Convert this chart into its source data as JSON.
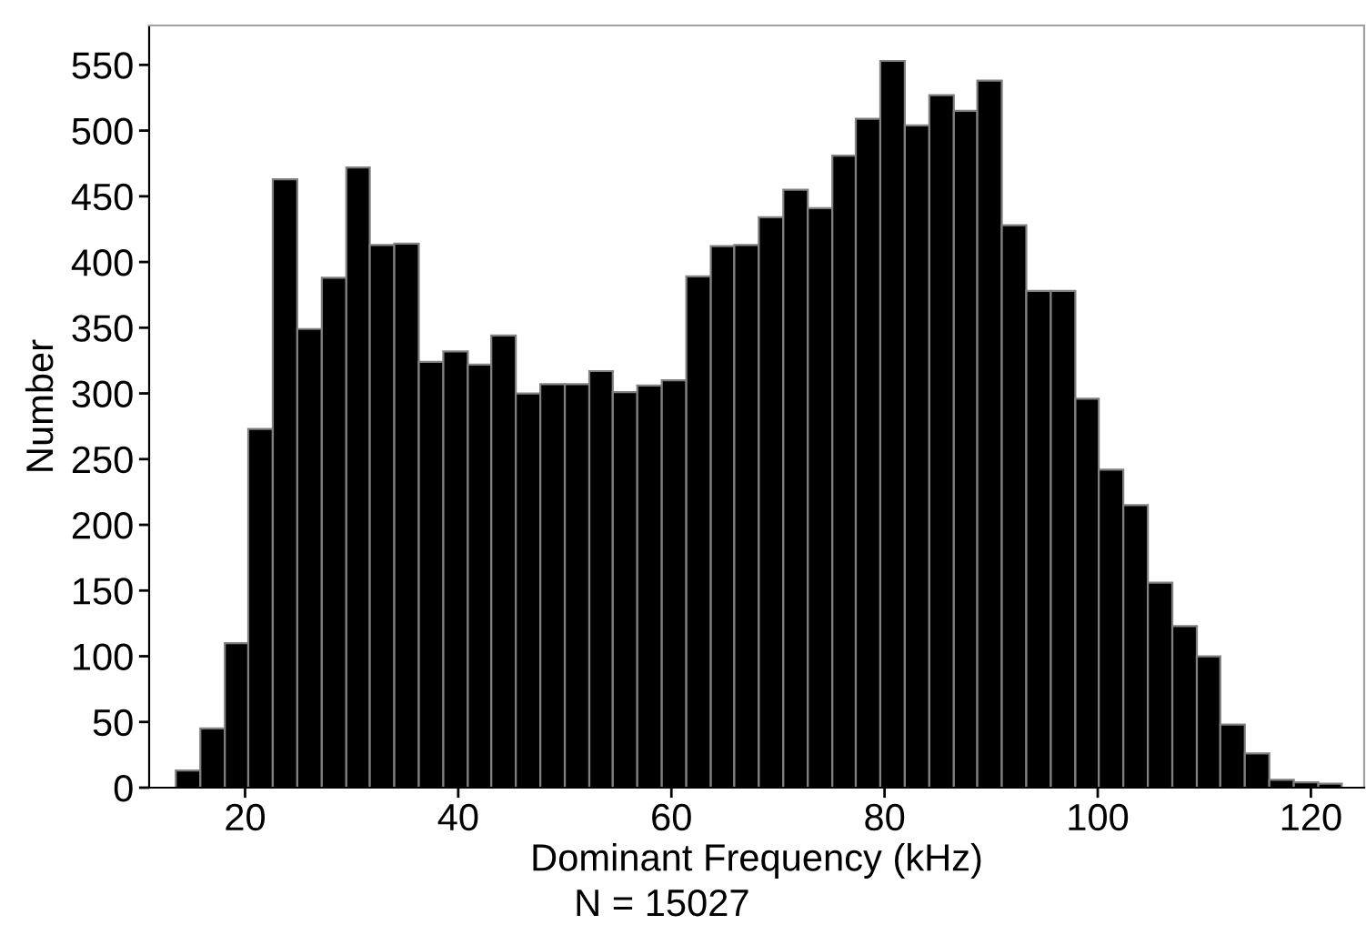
{
  "chart_data": {
    "type": "histogram",
    "xlabel": "Dominant Frequency (kHz)",
    "ylabel": "Number",
    "annotations": [
      "N = 15027"
    ],
    "bins": [
      13.5,
      15.8,
      18.1,
      20.3,
      22.6,
      24.9,
      27.2,
      29.5,
      31.7,
      34.0,
      36.3,
      38.6,
      40.9,
      43.1,
      45.4,
      47.7,
      50.0,
      52.3,
      54.5,
      56.8,
      59.1,
      61.4,
      63.7,
      65.9,
      68.2,
      70.5,
      72.8,
      75.1,
      77.3,
      79.6,
      81.9,
      84.2,
      86.5,
      88.7,
      91.0,
      93.3,
      95.6,
      97.9,
      100.1,
      102.4,
      104.7,
      107.0,
      109.3,
      111.5,
      113.8,
      116.1,
      118.4,
      120.7,
      122.9
    ],
    "values": [
      13,
      45,
      110,
      273,
      463,
      349,
      388,
      472,
      413,
      414,
      324,
      332,
      322,
      344,
      300,
      307,
      307,
      317,
      301,
      306,
      310,
      389,
      412,
      413,
      434,
      455,
      441,
      481,
      509,
      553,
      504,
      527,
      515,
      538,
      428,
      378,
      378,
      296,
      242,
      215,
      156,
      123,
      100,
      48,
      26,
      6,
      4,
      3
    ],
    "color": "#000000",
    "xlim": [
      11,
      125
    ],
    "ylim": [
      0,
      580
    ],
    "xticks": [
      20,
      40,
      60,
      80,
      100,
      120
    ],
    "yticks": [
      0,
      50,
      100,
      150,
      200,
      250,
      300,
      350,
      400,
      450,
      500,
      550
    ],
    "grid": false
  }
}
